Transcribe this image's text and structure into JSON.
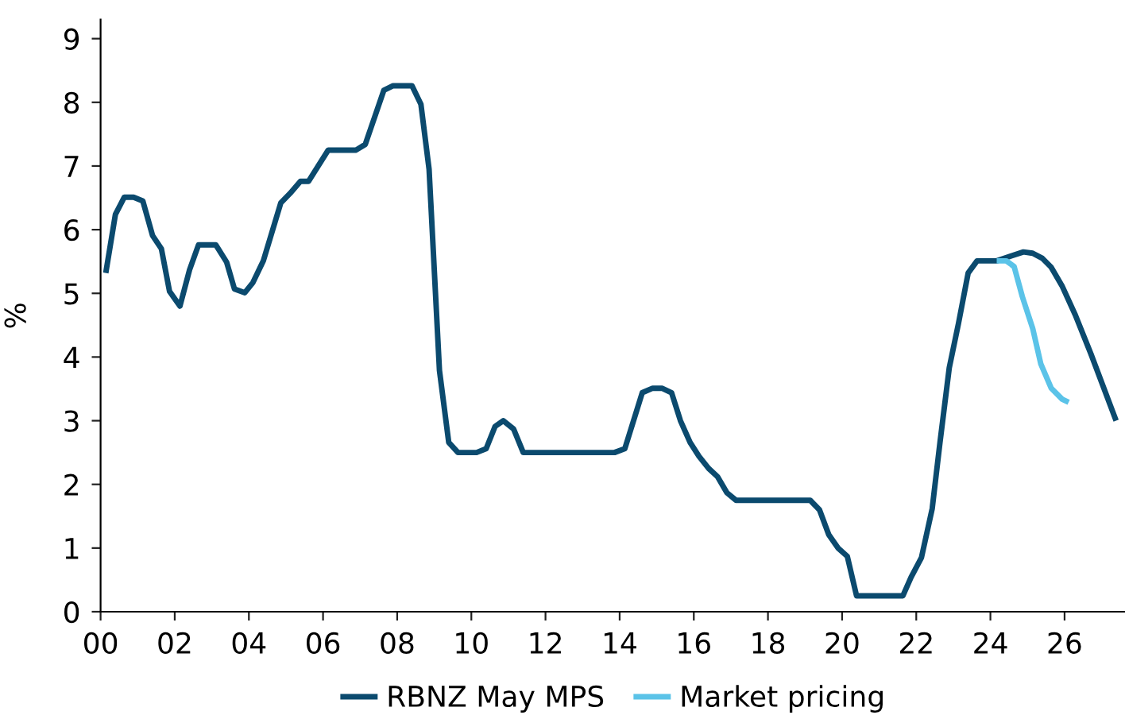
{
  "chart_data": {
    "type": "line",
    "ylabel": "%",
    "xlim": [
      2000,
      2027.63
    ],
    "ylim": [
      0,
      9.3
    ],
    "xticks": [
      {
        "value": 2000,
        "label": "00"
      },
      {
        "value": 2002,
        "label": "02"
      },
      {
        "value": 2004,
        "label": "04"
      },
      {
        "value": 2006,
        "label": "06"
      },
      {
        "value": 2008,
        "label": "08"
      },
      {
        "value": 2010,
        "label": "10"
      },
      {
        "value": 2012,
        "label": "12"
      },
      {
        "value": 2014,
        "label": "14"
      },
      {
        "value": 2016,
        "label": "16"
      },
      {
        "value": 2018,
        "label": "18"
      },
      {
        "value": 2020,
        "label": "20"
      },
      {
        "value": 2022,
        "label": "22"
      },
      {
        "value": 2024,
        "label": "24"
      },
      {
        "value": 2026,
        "label": "26"
      }
    ],
    "yticks": [
      0,
      1,
      2,
      3,
      4,
      5,
      6,
      7,
      8,
      9
    ],
    "grid": false,
    "legend": "bottom",
    "line_style": "solid",
    "series": [
      {
        "name": "RBNZ May MPS",
        "color": "#0b4a6e",
        "x": [
          2000.14,
          2000.4,
          2000.64,
          2000.89,
          2001.14,
          2001.4,
          2001.64,
          2001.86,
          2002.14,
          2002.4,
          2002.64,
          2003.11,
          2003.4,
          2003.61,
          2003.89,
          2004.11,
          2004.39,
          2004.86,
          2005.11,
          2005.39,
          2005.61,
          2006.14,
          2006.89,
          2007.14,
          2007.64,
          2007.89,
          2008.4,
          2008.64,
          2008.86,
          2009.14,
          2009.39,
          2009.64,
          2010.14,
          2010.4,
          2010.64,
          2010.86,
          2011.14,
          2011.4,
          2013.86,
          2014.14,
          2014.61,
          2014.89,
          2015.14,
          2015.4,
          2015.64,
          2015.9,
          2016.14,
          2016.4,
          2016.64,
          2016.89,
          2017.14,
          2019.14,
          2019.39,
          2019.64,
          2019.89,
          2020.14,
          2020.39,
          2021.64,
          2021.86,
          2022.14,
          2022.43,
          2022.64,
          2022.89,
          2023.14,
          2023.4,
          2023.64,
          2024.17,
          2024.57,
          2024.89,
          2025.14,
          2025.4,
          2025.64,
          2025.93,
          2026.29,
          2026.71,
          2027.39
        ],
        "values": [
          5.32,
          6.24,
          6.51,
          6.51,
          6.45,
          5.91,
          5.7,
          5.03,
          4.8,
          5.37,
          5.76,
          5.76,
          5.49,
          5.07,
          5.01,
          5.17,
          5.51,
          6.42,
          6.57,
          6.76,
          6.76,
          7.25,
          7.25,
          7.34,
          8.19,
          8.26,
          8.26,
          7.97,
          6.95,
          3.79,
          2.66,
          2.5,
          2.5,
          2.56,
          2.91,
          3.0,
          2.87,
          2.5,
          2.5,
          2.56,
          3.44,
          3.51,
          3.51,
          3.44,
          3.0,
          2.66,
          2.44,
          2.25,
          2.12,
          1.87,
          1.75,
          1.75,
          1.6,
          1.21,
          1.0,
          0.87,
          0.25,
          0.25,
          0.54,
          0.85,
          1.62,
          2.66,
          3.83,
          4.53,
          5.32,
          5.51,
          5.51,
          5.59,
          5.65,
          5.63,
          5.55,
          5.41,
          5.12,
          4.66,
          4.05,
          3.0
        ]
      },
      {
        "name": "Market pricing",
        "color": "#5bc3e8",
        "x": [
          2024.17,
          2024.43,
          2024.64,
          2024.86,
          2025.14,
          2025.36,
          2025.64,
          2025.93,
          2026.11
        ],
        "values": [
          5.51,
          5.51,
          5.42,
          4.95,
          4.45,
          3.89,
          3.51,
          3.34,
          3.29
        ]
      }
    ]
  }
}
